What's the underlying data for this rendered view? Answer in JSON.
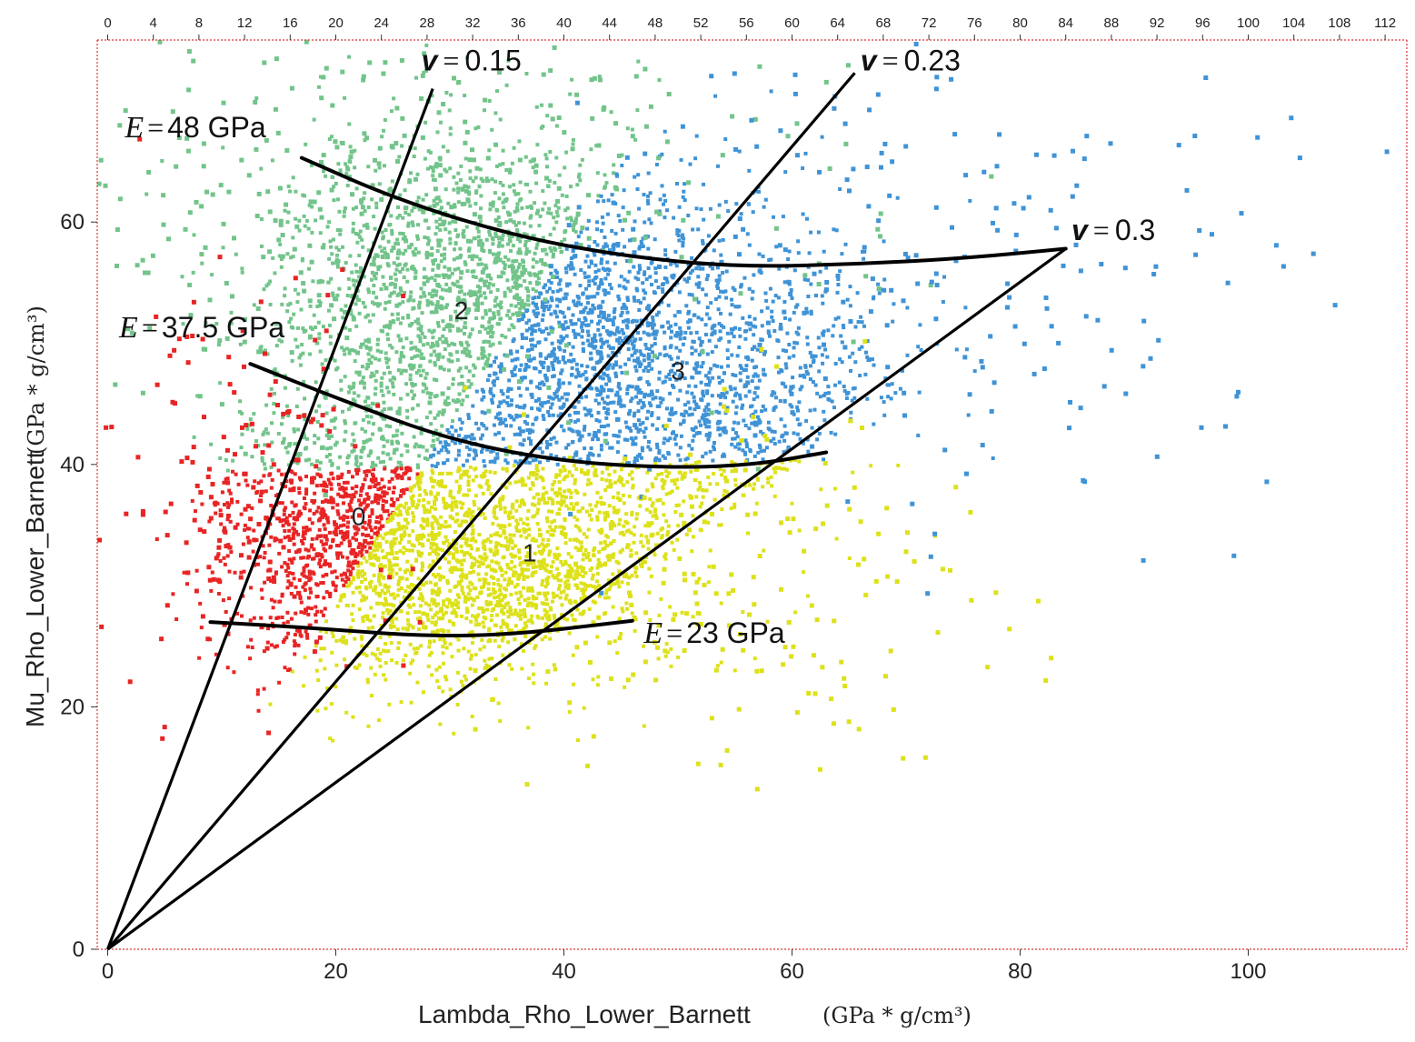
{
  "chart_data": {
    "type": "scatter",
    "xlabel": "Lambda_Rho_Lower_Barnett",
    "xlabel_unit": "(GPa * g/cm³)",
    "ylabel": "Mu_Rho_Lower_Barnett",
    "ylabel_unit": "(GPa * g/cm³)",
    "xlim": [
      -1,
      114
    ],
    "ylim": [
      0,
      75
    ],
    "x_ticks": [
      "0",
      "20",
      "40",
      "60",
      "80",
      "100"
    ],
    "y_ticks": [
      "0",
      "20",
      "40",
      "60"
    ],
    "top_ticks": [
      "0",
      "4",
      "8",
      "12",
      "16",
      "20",
      "24",
      "28",
      "32",
      "36",
      "40",
      "44",
      "48",
      "52",
      "56",
      "60",
      "64",
      "68",
      "72",
      "76",
      "80",
      "84",
      "88",
      "92",
      "96",
      "100",
      "104",
      "108",
      "112"
    ],
    "grid": false,
    "frame_color": "#dd3333",
    "clusters": [
      {
        "id": "0",
        "label": "0",
        "color": "#e82424",
        "center": [
          22,
          35
        ],
        "label_pos": [
          22,
          35
        ]
      },
      {
        "id": "1",
        "label": "1",
        "color": "#dde11a",
        "center": [
          37,
          31
        ],
        "label_pos": [
          37,
          32
        ]
      },
      {
        "id": "2",
        "label": "2",
        "color": "#72c48a",
        "center": [
          33,
          54
        ],
        "label_pos": [
          31,
          52
        ]
      },
      {
        "id": "3",
        "label": "3",
        "color": "#3f93d6",
        "center": [
          50,
          46
        ],
        "label_pos": [
          50,
          47
        ]
      }
    ],
    "poisson_lines": [
      {
        "label": "0.15",
        "text_before": "v",
        "end": [
          28.5,
          71.0
        ],
        "label_pos": [
          27.5,
          72.5
        ]
      },
      {
        "label": "0.23",
        "text_before": "v",
        "end": [
          65.5,
          72.3
        ],
        "label_pos": [
          66.0,
          72.5
        ]
      },
      {
        "label": "0.3",
        "text_before": "v",
        "end": [
          84.0,
          57.8
        ],
        "label_pos": [
          84.5,
          58.5
        ]
      }
    ],
    "youngs_modulus_curves": [
      {
        "label": "48 GPa",
        "text_before": "E",
        "points": [
          [
            17,
            65.3
          ],
          [
            25,
            62.0
          ],
          [
            35,
            59.0
          ],
          [
            45,
            57.2
          ],
          [
            55,
            56.3
          ],
          [
            65,
            56.5
          ],
          [
            75,
            57.0
          ],
          [
            84,
            57.8
          ]
        ],
        "label_pos": [
          1.5,
          67.0
        ]
      },
      {
        "label": "37.5 GPa",
        "text_before": "E",
        "points": [
          [
            12.5,
            48.3
          ],
          [
            20,
            45.5
          ],
          [
            30,
            42.0
          ],
          [
            40,
            40.2
          ],
          [
            50,
            39.7
          ],
          [
            57,
            40.0
          ],
          [
            63,
            41.0
          ]
        ],
        "label_pos": [
          1.0,
          50.5
        ]
      },
      {
        "label": "23 GPa",
        "text_before": "E",
        "points": [
          [
            9,
            27.0
          ],
          [
            18,
            26.5
          ],
          [
            28,
            25.8
          ],
          [
            36,
            26.0
          ],
          [
            46,
            27.1
          ]
        ],
        "label_pos": [
          47.0,
          25.3
        ]
      }
    ],
    "annotation_symbols": {
      "eq": "="
    }
  }
}
